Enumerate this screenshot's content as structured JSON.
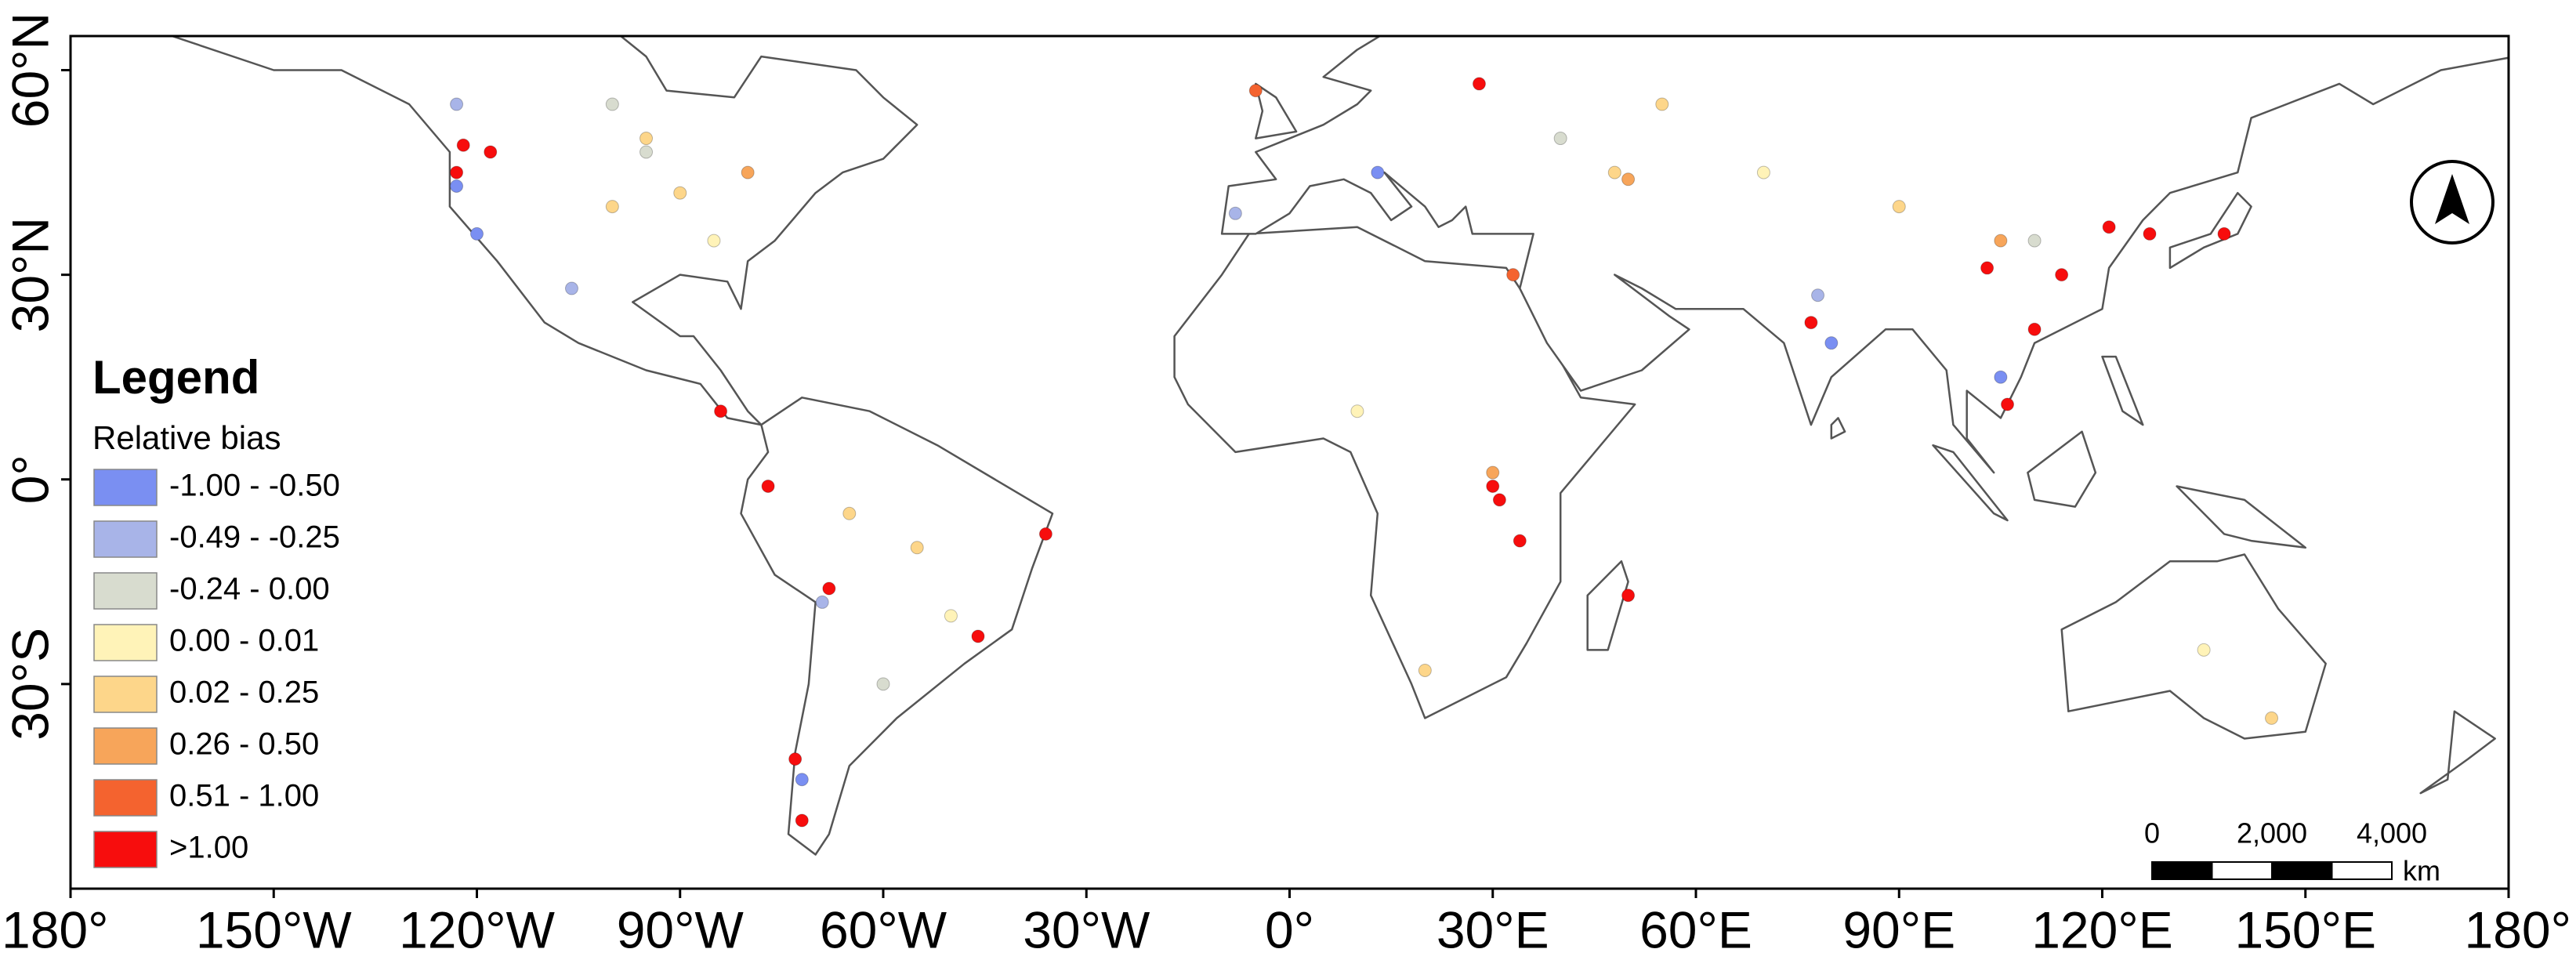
{
  "map": {
    "xlim": [
      -180,
      180
    ],
    "ylim": [
      -60,
      65
    ],
    "xticks": [
      {
        "value": -180,
        "label": "180°"
      },
      {
        "value": -150,
        "label": "150°W"
      },
      {
        "value": -120,
        "label": "120°W"
      },
      {
        "value": -90,
        "label": "90°W"
      },
      {
        "value": -60,
        "label": "60°W"
      },
      {
        "value": -30,
        "label": "30°W"
      },
      {
        "value": 0,
        "label": "0°"
      },
      {
        "value": 30,
        "label": "30°E"
      },
      {
        "value": 60,
        "label": "60°E"
      },
      {
        "value": 90,
        "label": "90°E"
      },
      {
        "value": 120,
        "label": "120°E"
      },
      {
        "value": 150,
        "label": "150°E"
      },
      {
        "value": 180,
        "label": "180°"
      }
    ],
    "yticks": [
      {
        "value": 60,
        "label": "60°N"
      },
      {
        "value": 30,
        "label": "30°N"
      },
      {
        "value": 0,
        "label": "0°"
      },
      {
        "value": -30,
        "label": "30°S"
      }
    ],
    "legend": {
      "title": "Legend",
      "subtitle": "Relative bias",
      "items": [
        {
          "label": "-1.00 - -0.50",
          "color": "#7a8ff2"
        },
        {
          "label": "-0.49 - -0.25",
          "color": "#a8b4e8"
        },
        {
          "label": "-0.24 - 0.00",
          "color": "#d8dccf"
        },
        {
          "label": "0.00 - 0.01",
          "color": "#fff3b8"
        },
        {
          "label": "0.02 - 0.25",
          "color": "#fdd68a"
        },
        {
          "label": "0.26 - 0.50",
          "color": "#f7a55a"
        },
        {
          "label": "0.51 - 1.00",
          "color": "#f4632f"
        },
        {
          "label": ">1.00",
          "color": "#f70d0d"
        }
      ]
    },
    "scale_bar": {
      "ticks": [
        {
          "value": 0,
          "label": "0"
        },
        {
          "value": 2000,
          "label": "2,000"
        },
        {
          "value": 4000,
          "label": "4,000"
        }
      ],
      "unit": "km"
    },
    "stations": [
      {
        "lon": -122,
        "lat": 49,
        "class": 7
      },
      {
        "lon": -118,
        "lat": 48,
        "class": 7
      },
      {
        "lon": -123,
        "lat": 45,
        "class": 7
      },
      {
        "lon": -84,
        "lat": 10,
        "class": 7
      },
      {
        "lon": -73,
        "lat": -41,
        "class": 7
      },
      {
        "lon": -72,
        "lat": -50,
        "class": 7
      },
      {
        "lon": -68,
        "lat": -16,
        "class": 7
      },
      {
        "lon": -77,
        "lat": -1,
        "class": 7
      },
      {
        "lon": -36,
        "lat": -8,
        "class": 7
      },
      {
        "lon": -46,
        "lat": -23,
        "class": 7
      },
      {
        "lon": 30,
        "lat": -1,
        "class": 7
      },
      {
        "lon": 31,
        "lat": -3,
        "class": 7
      },
      {
        "lon": 34,
        "lat": -9,
        "class": 7
      },
      {
        "lon": 50,
        "lat": -17,
        "class": 7
      },
      {
        "lon": 77,
        "lat": 23,
        "class": 7
      },
      {
        "lon": 103,
        "lat": 31,
        "class": 7
      },
      {
        "lon": 110,
        "lat": 22,
        "class": 7
      },
      {
        "lon": 106,
        "lat": 11,
        "class": 7
      },
      {
        "lon": 114,
        "lat": 30,
        "class": 7
      },
      {
        "lon": 121,
        "lat": 37,
        "class": 7
      },
      {
        "lon": 127,
        "lat": 36,
        "class": 7
      },
      {
        "lon": 138,
        "lat": 36,
        "class": 7
      },
      {
        "lon": 28,
        "lat": 58,
        "class": 7
      },
      {
        "lon": 33,
        "lat": 30,
        "class": 6
      },
      {
        "lon": -5,
        "lat": 57,
        "class": 6
      },
      {
        "lon": -123,
        "lat": 43,
        "class": 0
      },
      {
        "lon": -120,
        "lat": 36,
        "class": 0
      },
      {
        "lon": -106,
        "lat": 28,
        "class": 1
      },
      {
        "lon": -72,
        "lat": -44,
        "class": 0
      },
      {
        "lon": -69,
        "lat": -18,
        "class": 1
      },
      {
        "lon": 80,
        "lat": 20,
        "class": 0
      },
      {
        "lon": 78,
        "lat": 27,
        "class": 1
      },
      {
        "lon": 13,
        "lat": 45,
        "class": 0
      },
      {
        "lon": -8,
        "lat": 39,
        "class": 1
      },
      {
        "lon": 105,
        "lat": 15,
        "class": 0
      },
      {
        "lon": -123,
        "lat": 55,
        "class": 1
      },
      {
        "lon": -100,
        "lat": 55,
        "class": 2
      },
      {
        "lon": -95,
        "lat": 48,
        "class": 2
      },
      {
        "lon": 110,
        "lat": 35,
        "class": 2
      },
      {
        "lon": 40,
        "lat": 50,
        "class": 2
      },
      {
        "lon": -60,
        "lat": -30,
        "class": 2
      },
      {
        "lon": -95,
        "lat": 50,
        "class": 4
      },
      {
        "lon": -90,
        "lat": 42,
        "class": 4
      },
      {
        "lon": -85,
        "lat": 35,
        "class": 3
      },
      {
        "lon": -100,
        "lat": 40,
        "class": 4
      },
      {
        "lon": -80,
        "lat": 45,
        "class": 5
      },
      {
        "lon": 48,
        "lat": 45,
        "class": 4
      },
      {
        "lon": 50,
        "lat": 44,
        "class": 5
      },
      {
        "lon": 30,
        "lat": 1,
        "class": 5
      },
      {
        "lon": -55,
        "lat": -10,
        "class": 4
      },
      {
        "lon": -50,
        "lat": -20,
        "class": 3
      },
      {
        "lon": 135,
        "lat": -25,
        "class": 3
      },
      {
        "lon": 145,
        "lat": -35,
        "class": 4
      },
      {
        "lon": 20,
        "lat": -28,
        "class": 4
      },
      {
        "lon": 70,
        "lat": 45,
        "class": 3
      },
      {
        "lon": 90,
        "lat": 40,
        "class": 4
      },
      {
        "lon": 105,
        "lat": 35,
        "class": 5
      },
      {
        "lon": -65,
        "lat": -5,
        "class": 4
      },
      {
        "lon": 10,
        "lat": 10,
        "class": 3
      },
      {
        "lon": 55,
        "lat": 55,
        "class": 4
      }
    ]
  }
}
